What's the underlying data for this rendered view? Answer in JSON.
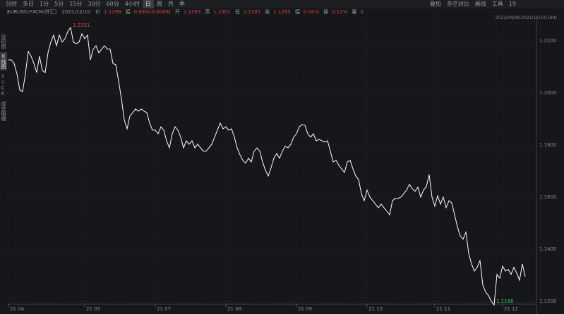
{
  "toolbar": {
    "periods": [
      "分时",
      "多日",
      "1分",
      "5分",
      "15分",
      "30分",
      "60分",
      "4小时",
      "日",
      "周",
      "月",
      "季"
    ],
    "tools": [
      "叠加",
      "多空对比",
      "画线",
      "工具",
      "19"
    ]
  },
  "info_bar": {
    "symbol": "EURUSD.FXCM(外汇)",
    "date": "2021/12/10",
    "fields": [
      {
        "label": "价",
        "value": "1.1299"
      },
      {
        "label": "幅",
        "value": "0.08%(0.0008)"
      },
      {
        "label": "开",
        "value": "1.1293"
      },
      {
        "label": "高",
        "value": "1.1301"
      },
      {
        "label": "低",
        "value": "1.1287"
      },
      {
        "label": "收",
        "value": "1.1295"
      },
      {
        "label": "幅",
        "value": "0.00%"
      },
      {
        "label": "振",
        "value": "0.12%"
      },
      {
        "label": "量",
        "value": "0"
      }
    ],
    "range": "2021/04/08-2021/12/10(184)"
  },
  "side_tabs": [
    "分时图",
    "K线图",
    "TICK",
    "成交明细"
  ],
  "chart_data": {
    "type": "line",
    "color": "#ffffff",
    "grid": true,
    "categories": [
      "21 04",
      null,
      null,
      null,
      null,
      null,
      null,
      null,
      null,
      null,
      null,
      null,
      null,
      null,
      null,
      null,
      null,
      null,
      null,
      null,
      null,
      null,
      null,
      null,
      null,
      null,
      null,
      "21 05",
      null,
      null,
      null,
      null,
      null,
      null,
      null,
      null,
      null,
      null,
      null,
      null,
      null,
      null,
      null,
      null,
      null,
      null,
      null,
      null,
      null,
      null,
      null,
      null,
      "21 07",
      null,
      null,
      null,
      null,
      null,
      null,
      null,
      null,
      null,
      null,
      null,
      null,
      null,
      null,
      null,
      null,
      null,
      null,
      null,
      null,
      null,
      null,
      null,
      null,
      "21 08",
      null,
      null,
      null,
      null,
      null,
      null,
      null,
      null,
      null,
      null,
      null,
      null,
      null,
      null,
      null,
      null,
      null,
      null,
      null,
      null,
      null,
      null,
      null,
      null,
      "21 09",
      null,
      null,
      null,
      null,
      null,
      null,
      null,
      null,
      null,
      null,
      null,
      null,
      null,
      null,
      null,
      null,
      null,
      null,
      null,
      null,
      null,
      null,
      null,
      null,
      "21 10",
      null,
      null,
      null,
      null,
      null,
      null,
      null,
      null,
      null,
      null,
      null,
      null,
      null,
      null,
      null,
      null,
      null,
      null,
      null,
      null,
      null,
      null,
      null,
      "21 11",
      null,
      null,
      null,
      null,
      null,
      null,
      null,
      null,
      null,
      null,
      null,
      null,
      null,
      null,
      null,
      null,
      null,
      null,
      null,
      null,
      null,
      null,
      null,
      "21 12",
      null,
      null,
      null,
      null,
      null,
      null,
      null,
      null
    ],
    "values": [
      1.2127,
      1.2127,
      1.2113,
      1.2073,
      1.2011,
      1.2005,
      1.2073,
      1.2159,
      1.2141,
      1.2113,
      1.2078,
      1.2141,
      1.2086,
      1.2078,
      1.2154,
      1.2195,
      1.2222,
      1.2181,
      1.2222,
      1.2195,
      1.2208,
      1.2235,
      1.2251,
      1.2195,
      1.2189,
      1.2195,
      1.2227,
      1.2208,
      1.2222,
      1.2127,
      1.2168,
      1.2181,
      1.2154,
      1.2168,
      1.2181,
      1.2168,
      1.2168,
      1.2113,
      1.2108,
      1.2046,
      1.1978,
      1.1897,
      1.1862,
      1.1911,
      1.1924,
      1.1938,
      1.193,
      1.1938,
      1.193,
      1.1924,
      1.1884,
      1.1857,
      1.1857,
      1.1843,
      1.187,
      1.1857,
      1.1816,
      1.1789,
      1.1843,
      1.187,
      1.1857,
      1.183,
      1.1789,
      1.1816,
      1.1803,
      1.1816,
      1.1789,
      1.1803,
      1.1789,
      1.1776,
      1.1776,
      1.1789,
      1.1803,
      1.183,
      1.1857,
      1.1884,
      1.1862,
      1.187,
      1.1857,
      1.1862,
      1.183,
      1.1789,
      1.1762,
      1.1741,
      1.173,
      1.1749,
      1.1735,
      1.1776,
      1.1789,
      1.1776,
      1.1735,
      1.1703,
      1.1681,
      1.1713,
      1.1749,
      1.1767,
      1.1749,
      1.1776,
      1.1795,
      1.1789,
      1.1803,
      1.183,
      1.1843,
      1.187,
      1.1878,
      1.1876,
      1.1843,
      1.183,
      1.1843,
      1.1816,
      1.1822,
      1.1816,
      1.1811,
      1.1816,
      1.1776,
      1.1735,
      1.1741,
      1.1722,
      1.1708,
      1.1695,
      1.1735,
      1.1741,
      1.1708,
      1.1681,
      1.1667,
      1.1613,
      1.1586,
      1.1627,
      1.16,
      1.1586,
      1.1573,
      1.1559,
      1.1573,
      1.1559,
      1.1546,
      1.1532,
      1.1586,
      1.1595,
      1.1595,
      1.16,
      1.1613,
      1.1627,
      1.1649,
      1.1632,
      1.1622,
      1.1638,
      1.16,
      1.1627,
      1.164,
      1.1686,
      1.16,
      1.1565,
      1.1605,
      1.1573,
      1.16,
      1.1559,
      1.1586,
      1.1578,
      1.1532,
      1.1486,
      1.1451,
      1.1438,
      1.1465,
      1.1384,
      1.1343,
      1.1316,
      1.133,
      1.1357,
      1.1262,
      1.1235,
      1.1222,
      1.12,
      1.1186,
      1.1303,
      1.1289,
      1.1335,
      1.1316,
      1.1322,
      1.1303,
      1.133,
      1.1308,
      1.1281,
      1.1343,
      1.1295
    ],
    "annotations": [
      {
        "label": "1.2251",
        "value": 1.2251,
        "color": "#e04040"
      },
      {
        "label": "1.1186",
        "value": 1.1186,
        "color": "#30c060"
      }
    ],
    "ylim": [
      1.1178,
      1.2281
    ],
    "yticks": [
      {
        "value": 1.22,
        "label": "1.2200"
      },
      {
        "value": 1.2,
        "label": "1.2000"
      },
      {
        "value": 1.18,
        "label": "1.1800"
      },
      {
        "value": 1.16,
        "label": "1.1600"
      },
      {
        "value": 1.14,
        "label": "1.1400"
      },
      {
        "value": 1.12,
        "label": "1.1200"
      }
    ]
  }
}
